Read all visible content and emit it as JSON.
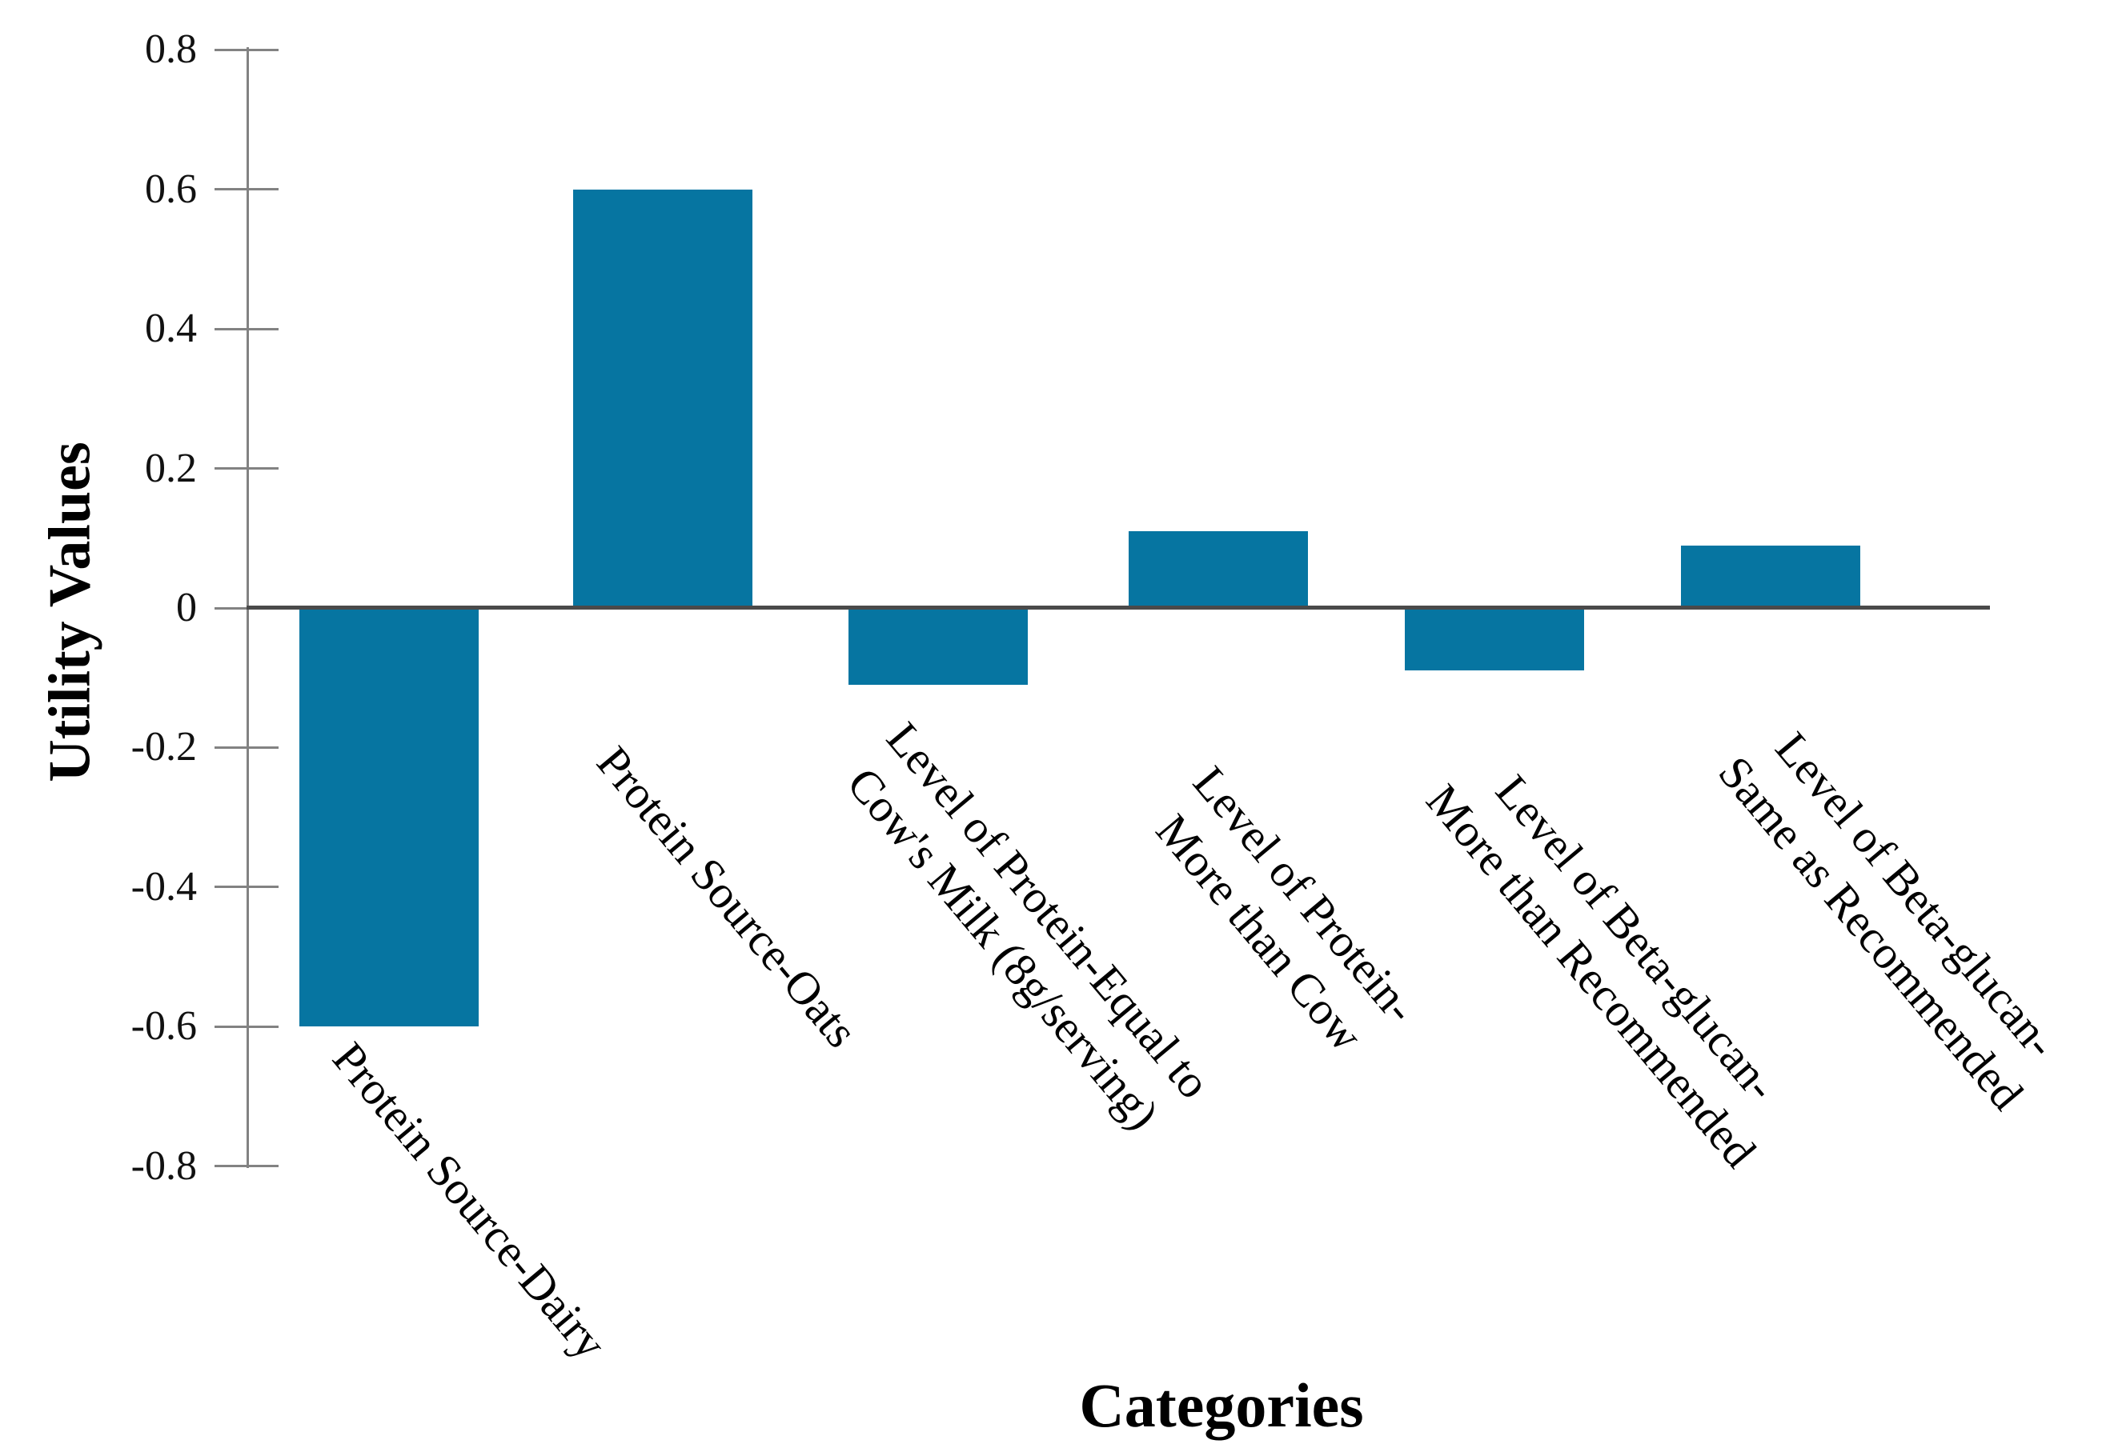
{
  "chart_data": {
    "type": "bar",
    "title": "",
    "xlabel": "Categories",
    "ylabel": "Utility Values",
    "categories": [
      {
        "id": "protein-source-dairy",
        "lines": [
          "Protein Source-Dairy"
        ]
      },
      {
        "id": "protein-source-oats",
        "lines": [
          "Protein Source-Oats"
        ]
      },
      {
        "id": "level-of-protein-equal-to-cows-milk",
        "lines": [
          "Level of Protein-Equal to",
          "Cow's Milk (8g/serving)"
        ]
      },
      {
        "id": "level-of-protein-more-than-cow",
        "lines": [
          "Level of Protein-",
          "More than Cow"
        ]
      },
      {
        "id": "level-of-beta-glucan-more-than-recommended",
        "lines": [
          "Level of Beta-glucan-",
          "More than Recommended"
        ]
      },
      {
        "id": "level-of-beta-glucan-same-as-recommended",
        "lines": [
          "Level of Beta-glucan-",
          "Same as Recommended"
        ]
      }
    ],
    "values": [
      -0.6,
      0.6,
      -0.11,
      0.11,
      -0.09,
      0.09
    ],
    "ylim": [
      -0.8,
      0.8
    ],
    "yticks": [
      {
        "value": 0.8,
        "label": "0.8"
      },
      {
        "value": 0.6,
        "label": "0.6"
      },
      {
        "value": 0.4,
        "label": "0.4"
      },
      {
        "value": 0.2,
        "label": "0.2"
      },
      {
        "value": 0,
        "label": "0"
      },
      {
        "value": -0.2,
        "label": "-0.2"
      },
      {
        "value": -0.4,
        "label": "-0.4"
      },
      {
        "value": -0.6,
        "label": "-0.6"
      },
      {
        "value": -0.8,
        "label": "-0.8"
      }
    ],
    "bar_color": "#0675a1",
    "grid": false,
    "legend_position": "none",
    "label_rotation_degrees": 50
  }
}
